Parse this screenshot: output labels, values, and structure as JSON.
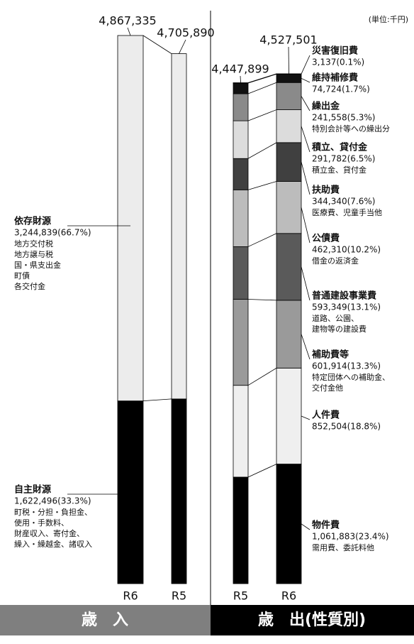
{
  "unit": "(単位:千円)",
  "chart_data": [
    {
      "type": "bar",
      "stacked": true,
      "title": "歳　入",
      "categories": [
        "R6",
        "R5"
      ],
      "totals": [
        4867335,
        4705890
      ],
      "total_labels": [
        "4,867,335",
        "4,705,890"
      ],
      "series": [
        {
          "name": "自主財源",
          "color": "#000000",
          "values": [
            1622496,
            1640000
          ],
          "value_labels": [
            "1,622,496(33.3%)",
            null
          ],
          "description": [
            "町税・分担・負担金、",
            "使用・手数料、",
            "財産収入、寄付金、",
            "繰入・繰越金、諸収入"
          ]
        },
        {
          "name": "依存財源",
          "color": "#ececec",
          "values": [
            3244839,
            3065890
          ],
          "value_labels": [
            "3,244,839(66.7%)",
            null
          ],
          "description": [
            "地方交付税",
            "地方譲与税",
            "国・県支出金",
            "町債",
            "各交付金"
          ]
        }
      ]
    },
    {
      "type": "bar",
      "stacked": true,
      "title": "歳　出(性質別)",
      "categories": [
        "R5",
        "R6"
      ],
      "totals": [
        4447899,
        4527501
      ],
      "total_labels": [
        "4,447,899",
        "4,527,501"
      ],
      "series": [
        {
          "name": "物件費",
          "color": "#000000",
          "values": [
            946000,
            1061883
          ],
          "value_labels": [
            null,
            "1,061,883(23.4%)"
          ],
          "description": [
            "需用費、委託料他"
          ]
        },
        {
          "name": "人件費",
          "color": "#efefef",
          "values": [
            815000,
            852504
          ],
          "value_labels": [
            null,
            "852,504(18.8%)"
          ]
        },
        {
          "name": "補助費等",
          "color": "#9a9a9a",
          "values": [
            764000,
            601914
          ],
          "value_labels": [
            null,
            "601,914(13.3%)"
          ],
          "description": [
            "特定団体への補助金、",
            "交付金他"
          ]
        },
        {
          "name": "普通建設事業費",
          "color": "#5a5a5a",
          "values": [
            467000,
            593349
          ],
          "value_labels": [
            null,
            "593,349(13.1%)"
          ],
          "description": [
            "道路、公園、",
            "建物等の建設費"
          ]
        },
        {
          "name": "公債費",
          "color": "#bcbcbc",
          "values": [
            505000,
            462310
          ],
          "value_labels": [
            null,
            "462,310(10.2%)"
          ],
          "description": [
            "借金の返済金"
          ]
        },
        {
          "name": "扶助費",
          "color": "#404040",
          "values": [
            278000,
            344340
          ],
          "value_labels": [
            null,
            "344,340(7.6%)"
          ],
          "description": [
            "医療費、児童手当他"
          ]
        },
        {
          "name": "積立、貸付金",
          "color": "#dcdcdc",
          "values": [
            335000,
            291782
          ],
          "value_labels": [
            null,
            "291,782(6.5%)"
          ],
          "description": [
            "積立金、貸付金"
          ]
        },
        {
          "name": "繰出金",
          "color": "#8a8a8a",
          "values": [
            240000,
            241558
          ],
          "value_labels": [
            null,
            "241,558(5.3%)"
          ],
          "description": [
            "特別会計等への繰出分"
          ]
        },
        {
          "name": "維持補修費",
          "color": "#111111",
          "values": [
            95000,
            74724
          ],
          "value_labels": [
            null,
            "74,724(1.7%)"
          ]
        },
        {
          "name": "災害復旧費",
          "color": "#ffffff",
          "values": [
            2899,
            3137
          ],
          "value_labels": [
            null,
            "3,137(0.1%)"
          ]
        }
      ]
    }
  ]
}
